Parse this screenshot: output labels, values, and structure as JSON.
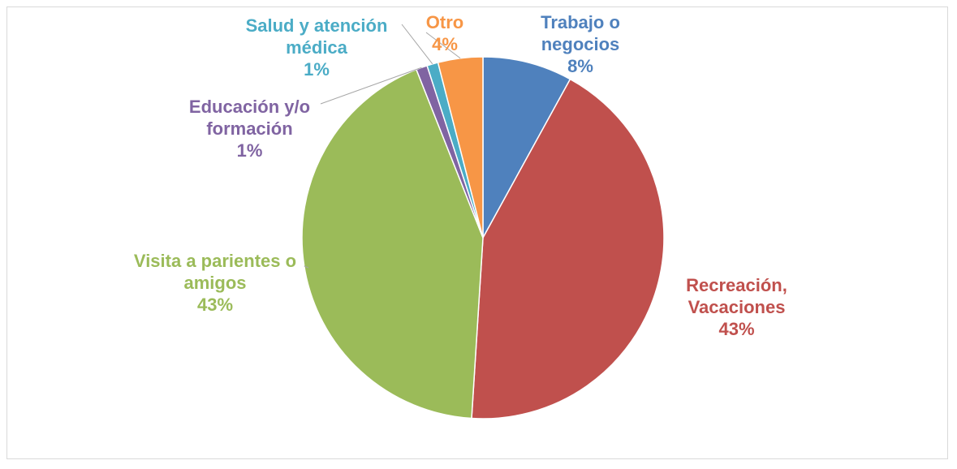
{
  "chart_data": {
    "type": "pie",
    "categories": [
      "Trabajo o negocios",
      "Recreación, Vacaciones",
      "Visita a parientes o amigos",
      "Educación y/o formación",
      "Salud y atención médica",
      "Otro"
    ],
    "values": [
      8,
      43,
      43,
      1,
      1,
      4
    ],
    "value_labels": [
      "8%",
      "43%",
      "43%",
      "1%",
      "1%",
      "4%"
    ],
    "colors": [
      "#4f81bd",
      "#c0504d",
      "#9bbb59",
      "#8064a2",
      "#4bacc6",
      "#f79646"
    ]
  }
}
